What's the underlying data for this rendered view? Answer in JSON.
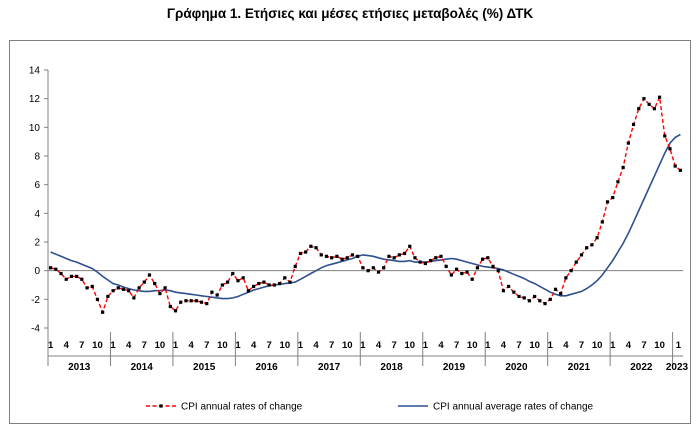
{
  "chart_data": {
    "type": "line",
    "title": "Γράφημα 1. Ετήσιες και μέσες ετήσιες μεταβολές (%) ΔΤΚ",
    "ylim": [
      -4,
      14
    ],
    "yticks": [
      14,
      12,
      10,
      8,
      6,
      4,
      2,
      0,
      -2,
      -4
    ],
    "month_ticks": [
      "1",
      "4",
      "7",
      "10"
    ],
    "years": [
      "2013",
      "2014",
      "2015",
      "2016",
      "2017",
      "2018",
      "2019",
      "2020",
      "2021",
      "2022",
      "2023"
    ],
    "last_month_label": "1",
    "legend_position": "bottom",
    "grid": false,
    "series": [
      {
        "name": "CPI annual rates of change",
        "color": "#ff0000",
        "marker_color": "#000000",
        "style": "dashed",
        "values": [
          0.2,
          0.1,
          -0.2,
          -0.6,
          -0.4,
          -0.4,
          -0.6,
          -1.2,
          -1.1,
          -2.0,
          -2.9,
          -1.8,
          -1.4,
          -1.2,
          -1.3,
          -1.4,
          -1.9,
          -1.2,
          -0.8,
          -0.3,
          -0.9,
          -1.6,
          -1.2,
          -2.5,
          -2.8,
          -2.2,
          -2.1,
          -2.1,
          -2.1,
          -2.2,
          -2.3,
          -1.5,
          -1.7,
          -1.0,
          -0.8,
          -0.2,
          -0.7,
          -0.5,
          -1.4,
          -1.1,
          -0.9,
          -0.8,
          -1.0,
          -1.0,
          -0.9,
          -0.5,
          -0.8,
          0.3,
          1.2,
          1.3,
          1.7,
          1.6,
          1.1,
          1.0,
          0.9,
          1.0,
          0.8,
          0.9,
          1.1,
          1.0,
          0.2,
          0.0,
          0.2,
          -0.1,
          0.2,
          1.0,
          0.9,
          1.1,
          1.2,
          1.7,
          0.9,
          0.6,
          0.5,
          0.7,
          0.9,
          1.0,
          0.3,
          -0.3,
          0.1,
          -0.2,
          -0.1,
          -0.6,
          0.2,
          0.8,
          0.9,
          0.3,
          0.0,
          -1.4,
          -1.1,
          -1.5,
          -1.8,
          -1.9,
          -2.1,
          -1.8,
          -2.1,
          -2.3,
          -2.0,
          -1.3,
          -1.6,
          -0.5,
          0.0,
          0.6,
          1.1,
          1.6,
          1.8,
          2.3,
          3.4,
          4.8,
          5.1,
          6.2,
          7.2,
          8.9,
          10.2,
          11.3,
          12.0,
          11.6,
          11.3,
          12.1,
          9.4,
          8.5,
          7.3,
          7.0
        ]
      },
      {
        "name": "CPI annual average rates of change",
        "color": "#2f4f8f",
        "style": "solid",
        "values": [
          1.3,
          1.15,
          1.0,
          0.85,
          0.7,
          0.6,
          0.45,
          0.3,
          0.15,
          -0.1,
          -0.4,
          -0.65,
          -0.9,
          -1.0,
          -1.15,
          -1.25,
          -1.35,
          -1.4,
          -1.45,
          -1.45,
          -1.4,
          -1.4,
          -1.35,
          -1.4,
          -1.5,
          -1.55,
          -1.6,
          -1.65,
          -1.7,
          -1.75,
          -1.8,
          -1.85,
          -1.9,
          -1.95,
          -1.95,
          -1.9,
          -1.8,
          -1.65,
          -1.5,
          -1.35,
          -1.25,
          -1.15,
          -1.05,
          -1.0,
          -0.95,
          -0.9,
          -0.85,
          -0.8,
          -0.6,
          -0.4,
          -0.2,
          0.0,
          0.2,
          0.35,
          0.45,
          0.55,
          0.65,
          0.75,
          0.85,
          1.0,
          1.1,
          1.05,
          1.0,
          0.9,
          0.8,
          0.75,
          0.7,
          0.65,
          0.65,
          0.7,
          0.6,
          0.6,
          0.6,
          0.65,
          0.7,
          0.75,
          0.8,
          0.85,
          0.8,
          0.7,
          0.6,
          0.5,
          0.4,
          0.3,
          0.25,
          0.2,
          0.15,
          0.05,
          -0.1,
          -0.25,
          -0.4,
          -0.55,
          -0.75,
          -0.9,
          -1.1,
          -1.3,
          -1.5,
          -1.65,
          -1.75,
          -1.75,
          -1.65,
          -1.55,
          -1.45,
          -1.25,
          -1.0,
          -0.7,
          -0.3,
          0.2,
          0.7,
          1.3,
          1.9,
          2.6,
          3.4,
          4.2,
          5.0,
          5.8,
          6.6,
          7.4,
          8.2,
          8.9,
          9.3,
          9.5
        ]
      }
    ]
  }
}
